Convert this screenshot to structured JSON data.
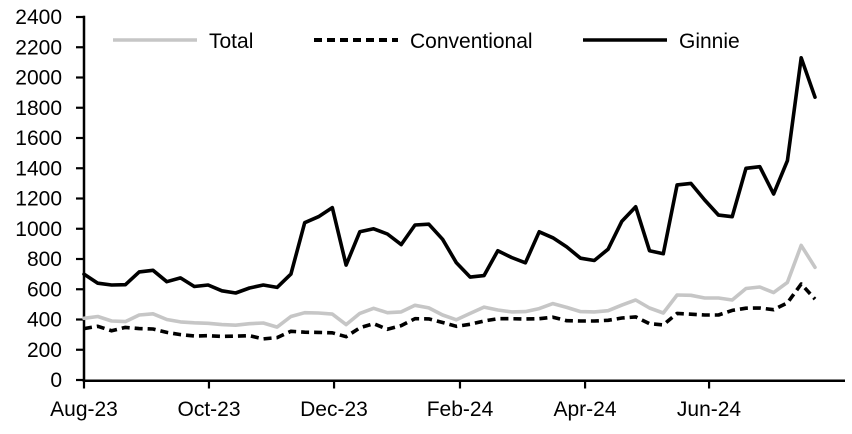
{
  "chart_data": {
    "type": "line",
    "title": "",
    "x_axis": {
      "tick_labels": [
        "Aug-23",
        "Oct-23",
        "Dec-23",
        "Feb-24",
        "Apr-24",
        "Jun-24"
      ],
      "tick_week_positions": [
        0,
        9.06,
        18.13,
        27.26,
        36.33,
        45.32
      ],
      "unit": "weekly observations"
    },
    "y_axis": {
      "min": 0,
      "max": 2400,
      "step": 200,
      "tick_labels": [
        "0",
        "200",
        "400",
        "600",
        "800",
        "1000",
        "1200",
        "1400",
        "1600",
        "1800",
        "2000",
        "2200",
        "2400"
      ]
    },
    "legend": {
      "position": "top"
    },
    "grid": false,
    "series": [
      {
        "name": "Total",
        "color": "#c6c6c6",
        "style": "solid",
        "values": [
          408,
          420,
          390,
          386,
          430,
          438,
          400,
          384,
          378,
          375,
          366,
          362,
          372,
          377,
          350,
          420,
          445,
          443,
          436,
          366,
          440,
          474,
          445,
          450,
          494,
          477,
          430,
          398,
          440,
          482,
          463,
          450,
          452,
          472,
          505,
          480,
          452,
          450,
          458,
          495,
          529,
          476,
          443,
          562,
          560,
          542,
          542,
          529,
          605,
          615,
          578,
          645,
          890,
          745
        ]
      },
      {
        "name": "Conventional",
        "color": "#000000",
        "style": "dashed",
        "values": [
          340,
          355,
          325,
          348,
          340,
          337,
          315,
          300,
          291,
          293,
          288,
          290,
          293,
          272,
          280,
          322,
          316,
          315,
          312,
          286,
          345,
          372,
          335,
          360,
          405,
          404,
          380,
          355,
          368,
          390,
          405,
          405,
          403,
          405,
          415,
          392,
          390,
          390,
          395,
          410,
          417,
          372,
          364,
          440,
          435,
          430,
          430,
          460,
          475,
          476,
          465,
          510,
          635,
          535
        ]
      },
      {
        "name": "Ginnie",
        "color": "#000000",
        "style": "solid",
        "values": [
          700,
          640,
          628,
          630,
          715,
          725,
          650,
          675,
          618,
          628,
          590,
          575,
          608,
          628,
          612,
          700,
          1040,
          1080,
          1140,
          760,
          980,
          1000,
          965,
          895,
          1025,
          1030,
          930,
          775,
          680,
          690,
          855,
          810,
          775,
          980,
          940,
          880,
          805,
          790,
          865,
          1050,
          1145,
          855,
          835,
          1290,
          1300,
          1190,
          1090,
          1080,
          1400,
          1410,
          1230,
          1450,
          2130,
          1870
        ]
      }
    ]
  }
}
